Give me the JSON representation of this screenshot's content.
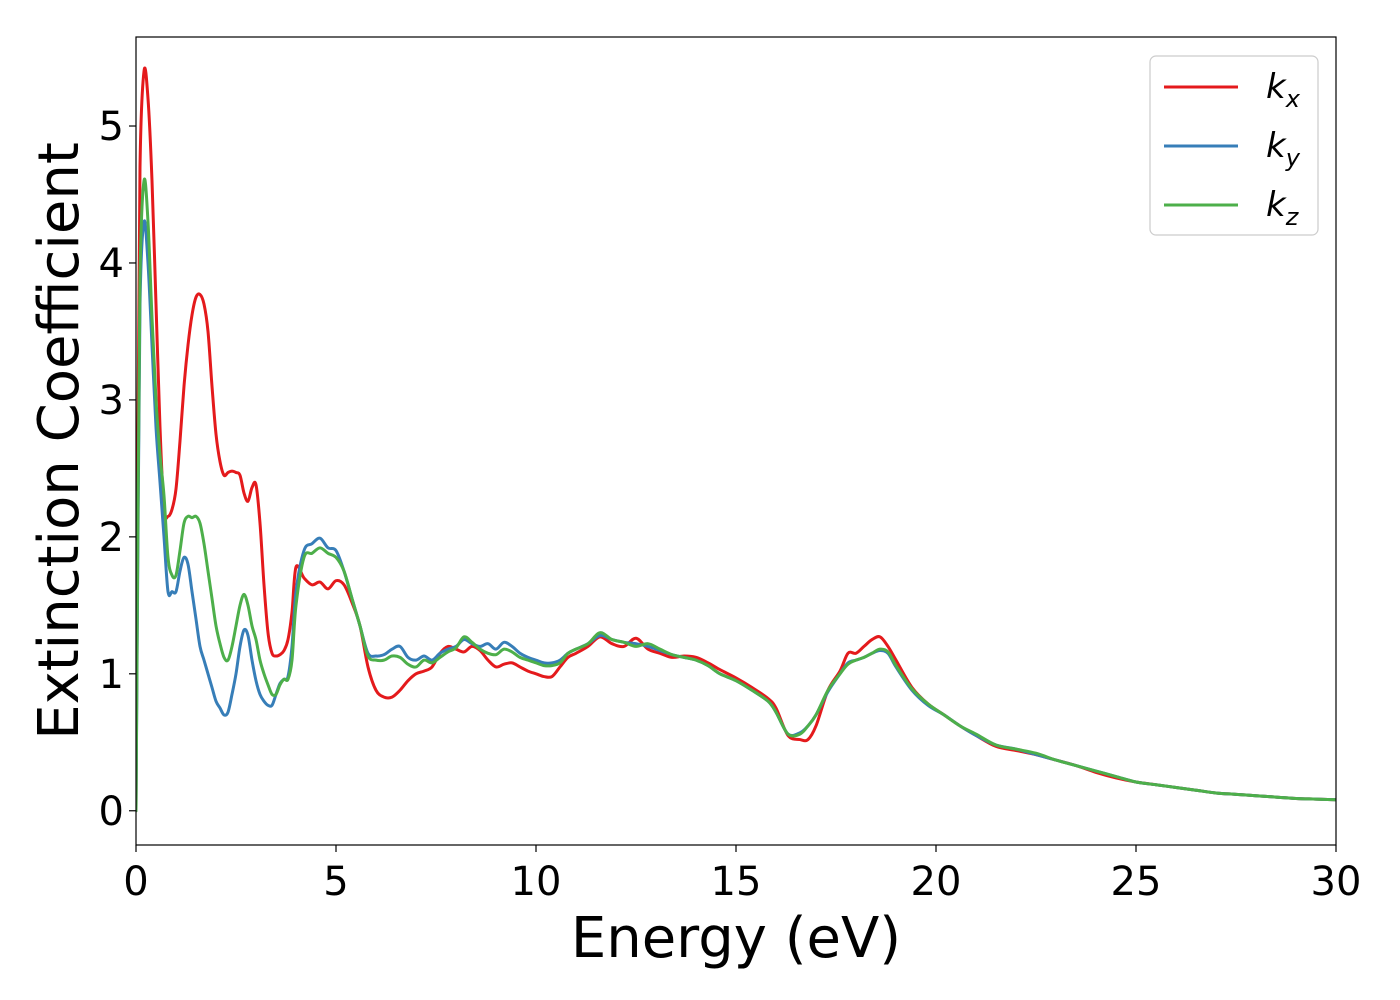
{
  "chart_data": {
    "type": "line",
    "title": "",
    "xlabel": "Energy (eV)",
    "ylabel": "Extinction Coefficient",
    "xlim": [
      0,
      30
    ],
    "ylim": [
      -0.25,
      5.65
    ],
    "xticks": [
      0,
      5,
      10,
      15,
      20,
      25,
      30
    ],
    "yticks": [
      0,
      1,
      2,
      3,
      4,
      5
    ],
    "grid": false,
    "legend_position": "top-right",
    "series": [
      {
        "name": "k_x",
        "label_base": "k",
        "label_sub": "x",
        "color": "#e41a1c",
        "x": [
          0,
          0.05,
          0.1,
          0.2,
          0.3,
          0.4,
          0.5,
          0.6,
          0.7,
          0.8,
          0.9,
          1.0,
          1.1,
          1.2,
          1.3,
          1.4,
          1.5,
          1.6,
          1.7,
          1.8,
          1.9,
          2.0,
          2.1,
          2.2,
          2.3,
          2.4,
          2.5,
          2.6,
          2.7,
          2.8,
          2.9,
          3.0,
          3.1,
          3.2,
          3.3,
          3.4,
          3.5,
          3.6,
          3.7,
          3.8,
          3.9,
          4.0,
          4.2,
          4.4,
          4.6,
          4.8,
          5.0,
          5.2,
          5.4,
          5.6,
          5.8,
          6.0,
          6.2,
          6.4,
          6.6,
          6.8,
          7.0,
          7.2,
          7.4,
          7.6,
          7.8,
          8.0,
          8.2,
          8.4,
          8.6,
          8.8,
          9.0,
          9.2,
          9.4,
          9.6,
          9.8,
          10.0,
          10.2,
          10.4,
          10.6,
          10.8,
          11.0,
          11.3,
          11.6,
          11.9,
          12.2,
          12.5,
          12.8,
          13.1,
          13.4,
          13.7,
          14.0,
          14.3,
          14.6,
          15.0,
          15.4,
          15.8,
          16.0,
          16.3,
          16.6,
          16.8,
          17.0,
          17.3,
          17.6,
          17.8,
          18.0,
          18.2,
          18.4,
          18.6,
          18.8,
          19.0,
          19.4,
          19.8,
          20.2,
          20.6,
          21.0,
          21.5,
          22.0,
          22.5,
          23.0,
          23.5,
          24.0,
          24.5,
          25.0,
          25.5,
          26.0,
          26.5,
          27.0,
          27.5,
          28.0,
          28.5,
          29.0,
          29.5,
          30.0
        ],
        "y": [
          0.0,
          2.8,
          4.7,
          5.4,
          5.2,
          4.6,
          3.7,
          2.8,
          2.2,
          2.15,
          2.2,
          2.35,
          2.7,
          3.1,
          3.4,
          3.62,
          3.75,
          3.77,
          3.7,
          3.5,
          3.1,
          2.75,
          2.55,
          2.45,
          2.47,
          2.48,
          2.47,
          2.45,
          2.32,
          2.26,
          2.36,
          2.38,
          2.1,
          1.65,
          1.3,
          1.15,
          1.13,
          1.14,
          1.17,
          1.25,
          1.45,
          1.78,
          1.7,
          1.65,
          1.67,
          1.62,
          1.68,
          1.65,
          1.52,
          1.35,
          1.05,
          0.88,
          0.83,
          0.83,
          0.88,
          0.95,
          1.0,
          1.02,
          1.05,
          1.15,
          1.2,
          1.18,
          1.16,
          1.2,
          1.17,
          1.1,
          1.05,
          1.07,
          1.08,
          1.05,
          1.02,
          1.0,
          0.98,
          0.98,
          1.05,
          1.12,
          1.15,
          1.2,
          1.27,
          1.22,
          1.2,
          1.26,
          1.18,
          1.15,
          1.12,
          1.13,
          1.12,
          1.08,
          1.03,
          0.97,
          0.9,
          0.82,
          0.75,
          0.55,
          0.52,
          0.52,
          0.62,
          0.88,
          1.02,
          1.15,
          1.15,
          1.2,
          1.25,
          1.27,
          1.2,
          1.1,
          0.9,
          0.78,
          0.7,
          0.62,
          0.55,
          0.47,
          0.44,
          0.41,
          0.37,
          0.33,
          0.28,
          0.24,
          0.21,
          0.19,
          0.17,
          0.15,
          0.13,
          0.12,
          0.11,
          0.1,
          0.09,
          0.085,
          0.08
        ]
      },
      {
        "name": "k_y",
        "label_base": "k",
        "label_sub": "y",
        "color": "#377eb8",
        "x": [
          0,
          0.05,
          0.1,
          0.2,
          0.3,
          0.4,
          0.5,
          0.6,
          0.7,
          0.8,
          0.9,
          1.0,
          1.1,
          1.2,
          1.3,
          1.4,
          1.5,
          1.6,
          1.7,
          1.8,
          1.9,
          2.0,
          2.1,
          2.2,
          2.3,
          2.4,
          2.5,
          2.6,
          2.7,
          2.8,
          2.9,
          3.0,
          3.1,
          3.2,
          3.3,
          3.4,
          3.5,
          3.6,
          3.7,
          3.8,
          3.9,
          4.0,
          4.2,
          4.4,
          4.6,
          4.8,
          5.0,
          5.2,
          5.4,
          5.6,
          5.8,
          6.0,
          6.2,
          6.4,
          6.6,
          6.8,
          7.0,
          7.2,
          7.4,
          7.6,
          7.8,
          8.0,
          8.2,
          8.4,
          8.6,
          8.8,
          9.0,
          9.2,
          9.4,
          9.6,
          9.8,
          10.0,
          10.2,
          10.4,
          10.6,
          10.8,
          11.0,
          11.3,
          11.6,
          11.9,
          12.2,
          12.5,
          12.8,
          13.1,
          13.4,
          13.7,
          14.0,
          14.3,
          14.6,
          15.0,
          15.4,
          15.8,
          16.0,
          16.3,
          16.6,
          16.8,
          17.0,
          17.3,
          17.6,
          17.8,
          18.0,
          18.2,
          18.4,
          18.6,
          18.8,
          19.0,
          19.4,
          19.8,
          20.2,
          20.6,
          21.0,
          21.5,
          22.0,
          22.5,
          23.0,
          23.5,
          24.0,
          24.5,
          25.0,
          25.5,
          26.0,
          26.5,
          27.0,
          27.5,
          28.0,
          28.5,
          29.0,
          29.5,
          30.0
        ],
        "y": [
          0.0,
          2.0,
          3.7,
          4.3,
          4.0,
          3.4,
          2.8,
          2.4,
          2.0,
          1.6,
          1.6,
          1.6,
          1.75,
          1.85,
          1.8,
          1.6,
          1.4,
          1.2,
          1.1,
          1.0,
          0.9,
          0.8,
          0.75,
          0.7,
          0.72,
          0.85,
          1.0,
          1.2,
          1.32,
          1.28,
          1.1,
          0.95,
          0.85,
          0.8,
          0.77,
          0.77,
          0.85,
          0.93,
          0.96,
          0.98,
          1.2,
          1.6,
          1.9,
          1.95,
          1.99,
          1.92,
          1.9,
          1.75,
          1.55,
          1.35,
          1.15,
          1.13,
          1.14,
          1.18,
          1.2,
          1.12,
          1.1,
          1.13,
          1.1,
          1.15,
          1.18,
          1.2,
          1.25,
          1.22,
          1.2,
          1.22,
          1.18,
          1.23,
          1.2,
          1.15,
          1.12,
          1.1,
          1.08,
          1.08,
          1.1,
          1.15,
          1.18,
          1.22,
          1.28,
          1.25,
          1.23,
          1.22,
          1.2,
          1.17,
          1.14,
          1.12,
          1.1,
          1.06,
          1.0,
          0.95,
          0.88,
          0.8,
          0.72,
          0.56,
          0.57,
          0.62,
          0.7,
          0.87,
          1.0,
          1.08,
          1.1,
          1.12,
          1.15,
          1.17,
          1.15,
          1.05,
          0.88,
          0.77,
          0.7,
          0.62,
          0.55,
          0.48,
          0.45,
          0.41,
          0.37,
          0.33,
          0.29,
          0.25,
          0.21,
          0.19,
          0.17,
          0.15,
          0.13,
          0.12,
          0.11,
          0.1,
          0.09,
          0.085,
          0.08
        ]
      },
      {
        "name": "k_z",
        "label_base": "k",
        "label_sub": "z",
        "color": "#4daf4a",
        "x": [
          0,
          0.05,
          0.1,
          0.2,
          0.3,
          0.4,
          0.5,
          0.6,
          0.7,
          0.8,
          0.9,
          1.0,
          1.1,
          1.2,
          1.3,
          1.4,
          1.5,
          1.6,
          1.7,
          1.8,
          1.9,
          2.0,
          2.1,
          2.2,
          2.3,
          2.4,
          2.5,
          2.6,
          2.7,
          2.8,
          2.9,
          3.0,
          3.1,
          3.2,
          3.3,
          3.4,
          3.5,
          3.6,
          3.7,
          3.8,
          3.9,
          4.0,
          4.2,
          4.4,
          4.6,
          4.8,
          5.0,
          5.2,
          5.4,
          5.6,
          5.8,
          6.0,
          6.2,
          6.4,
          6.6,
          6.8,
          7.0,
          7.2,
          7.4,
          7.6,
          7.8,
          8.0,
          8.2,
          8.4,
          8.6,
          8.8,
          9.0,
          9.2,
          9.4,
          9.6,
          9.8,
          10.0,
          10.2,
          10.4,
          10.6,
          10.8,
          11.0,
          11.3,
          11.6,
          11.9,
          12.2,
          12.5,
          12.8,
          13.1,
          13.4,
          13.7,
          14.0,
          14.3,
          14.6,
          15.0,
          15.4,
          15.8,
          16.0,
          16.3,
          16.6,
          16.8,
          17.0,
          17.3,
          17.6,
          17.8,
          18.0,
          18.2,
          18.4,
          18.6,
          18.8,
          19.0,
          19.4,
          19.8,
          20.2,
          20.6,
          21.0,
          21.5,
          22.0,
          22.5,
          23.0,
          23.5,
          24.0,
          24.5,
          25.0,
          25.5,
          26.0,
          26.5,
          27.0,
          27.5,
          28.0,
          28.5,
          29.0,
          29.5,
          30.0
        ],
        "y": [
          0.0,
          2.2,
          3.9,
          4.6,
          4.3,
          3.6,
          3.0,
          2.6,
          2.3,
          1.85,
          1.72,
          1.72,
          1.9,
          2.1,
          2.15,
          2.14,
          2.15,
          2.1,
          1.95,
          1.75,
          1.55,
          1.35,
          1.22,
          1.12,
          1.1,
          1.2,
          1.35,
          1.5,
          1.58,
          1.5,
          1.35,
          1.25,
          1.1,
          1.0,
          0.92,
          0.85,
          0.85,
          0.92,
          0.96,
          0.96,
          1.1,
          1.5,
          1.85,
          1.88,
          1.92,
          1.88,
          1.85,
          1.75,
          1.55,
          1.35,
          1.13,
          1.1,
          1.1,
          1.13,
          1.12,
          1.07,
          1.05,
          1.1,
          1.08,
          1.12,
          1.16,
          1.19,
          1.27,
          1.23,
          1.18,
          1.15,
          1.14,
          1.18,
          1.16,
          1.12,
          1.1,
          1.08,
          1.06,
          1.06,
          1.08,
          1.15,
          1.18,
          1.22,
          1.3,
          1.25,
          1.23,
          1.2,
          1.22,
          1.18,
          1.14,
          1.12,
          1.1,
          1.06,
          1.0,
          0.95,
          0.88,
          0.8,
          0.72,
          0.56,
          0.56,
          0.62,
          0.7,
          0.88,
          1.0,
          1.07,
          1.1,
          1.12,
          1.15,
          1.18,
          1.16,
          1.06,
          0.89,
          0.78,
          0.7,
          0.62,
          0.56,
          0.48,
          0.45,
          0.42,
          0.37,
          0.33,
          0.29,
          0.25,
          0.21,
          0.19,
          0.17,
          0.15,
          0.13,
          0.12,
          0.11,
          0.1,
          0.09,
          0.085,
          0.08
        ]
      }
    ]
  }
}
